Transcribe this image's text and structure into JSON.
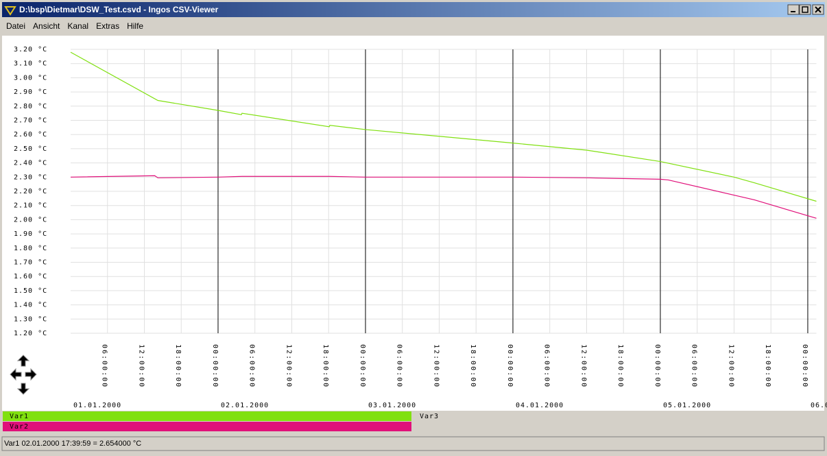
{
  "window": {
    "title": "D:\\bsp\\Dietmar\\DSW_Test.csvd - Ingos CSV-Viewer"
  },
  "menu": [
    "Datei",
    "Ansicht",
    "Kanal",
    "Extras",
    "Hilfe"
  ],
  "chart_data": {
    "type": "line",
    "xlim": [
      0,
      121.4
    ],
    "ylim": [
      1.2,
      3.2
    ],
    "yticks": [
      {
        "value": 1.2,
        "label": "1.20 °C"
      },
      {
        "value": 1.3,
        "label": "1.30 °C"
      },
      {
        "value": 1.4,
        "label": "1.40 °C"
      },
      {
        "value": 1.5,
        "label": "1.50 °C"
      },
      {
        "value": 1.6,
        "label": "1.60 °C"
      },
      {
        "value": 1.7,
        "label": "1.70 °C"
      },
      {
        "value": 1.8,
        "label": "1.80 °C"
      },
      {
        "value": 1.9,
        "label": "1.90 °C"
      },
      {
        "value": 2.0,
        "label": "2.00 °C"
      },
      {
        "value": 2.1,
        "label": "2.10 °C"
      },
      {
        "value": 2.2,
        "label": "2.20 °C"
      },
      {
        "value": 2.3,
        "label": "2.30 °C"
      },
      {
        "value": 2.4,
        "label": "2.40 °C"
      },
      {
        "value": 2.5,
        "label": "2.50 °C"
      },
      {
        "value": 2.6,
        "label": "2.60 °C"
      },
      {
        "value": 2.7,
        "label": "2.70 °C"
      },
      {
        "value": 2.8,
        "label": "2.80 °C"
      },
      {
        "value": 2.9,
        "label": "2.90 °C"
      },
      {
        "value": 3.0,
        "label": "3.00 °C"
      },
      {
        "value": 3.1,
        "label": "3.10 °C"
      },
      {
        "value": 3.2,
        "label": "3.20 °C"
      }
    ],
    "xticks": [
      {
        "value": 6,
        "label": "06:00:00"
      },
      {
        "value": 12,
        "label": "12:00:00"
      },
      {
        "value": 18,
        "label": "18:00:00"
      },
      {
        "value": 24,
        "label": "00:00:00"
      },
      {
        "value": 30,
        "label": "06:00:00"
      },
      {
        "value": 36,
        "label": "12:00:00"
      },
      {
        "value": 42,
        "label": "18:00:00"
      },
      {
        "value": 48,
        "label": "00:00:00"
      },
      {
        "value": 54,
        "label": "06:00:00"
      },
      {
        "value": 60,
        "label": "12:00:00"
      },
      {
        "value": 66,
        "label": "18:00:00"
      },
      {
        "value": 72,
        "label": "00:00:00"
      },
      {
        "value": 78,
        "label": "06:00:00"
      },
      {
        "value": 84,
        "label": "12:00:00"
      },
      {
        "value": 90,
        "label": "18:00:00"
      },
      {
        "value": 96,
        "label": "00:00:00"
      },
      {
        "value": 102,
        "label": "06:00:00"
      },
      {
        "value": 108,
        "label": "12:00:00"
      },
      {
        "value": 114,
        "label": "18:00:00"
      },
      {
        "value": 120,
        "label": "00:00:00"
      }
    ],
    "date_labels": [
      {
        "value": 0,
        "label": "01.01.2000"
      },
      {
        "value": 24,
        "label": "02.01.2000"
      },
      {
        "value": 48,
        "label": "03.01.2000"
      },
      {
        "value": 72,
        "label": "04.01.2000"
      },
      {
        "value": 96,
        "label": "05.01.2000"
      },
      {
        "value": 120,
        "label": "06.0"
      }
    ],
    "grid": true,
    "series": [
      {
        "name": "Var1",
        "color": "#80e010",
        "x": [
          0,
          14.2,
          24,
          27.8,
          27.9,
          42.1,
          42.2,
          48,
          72,
          84,
          96,
          108,
          111.3,
          121.4
        ],
        "values": [
          3.18,
          2.84,
          2.77,
          2.74,
          2.75,
          2.655,
          2.665,
          2.635,
          2.54,
          2.49,
          2.41,
          2.3,
          2.26,
          2.13
        ]
      },
      {
        "name": "Var2",
        "color": "#e0107a",
        "x": [
          0,
          13.7,
          14.2,
          24,
          27.9,
          42.1,
          48,
          72,
          84,
          96,
          97.3,
          111.3,
          121.4
        ],
        "values": [
          2.3,
          2.31,
          2.295,
          2.3,
          2.305,
          2.305,
          2.3,
          2.3,
          2.295,
          2.285,
          2.28,
          2.14,
          2.01
        ]
      }
    ],
    "legend_items": [
      "Var3"
    ]
  },
  "status": "Var1 02.01.2000 17:39:59 = 2.654000 °C"
}
